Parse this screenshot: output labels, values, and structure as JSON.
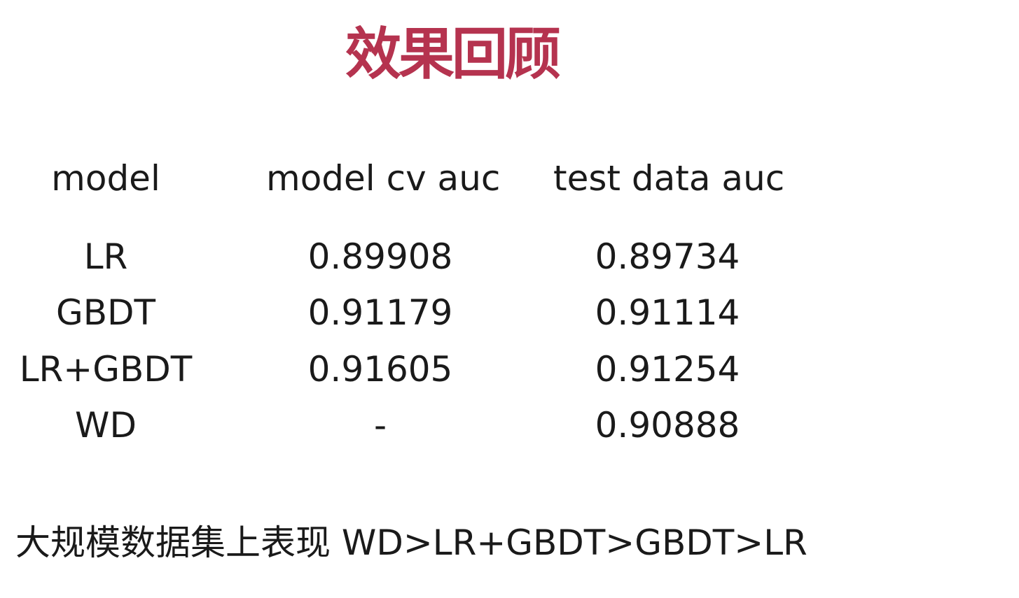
{
  "slide": {
    "title": "效果回顾",
    "accent_color": "#b5334f",
    "text_color": "#1a1a1a",
    "background": "#ffffff"
  },
  "table": {
    "headers": {
      "model": "model",
      "cv_auc": "model cv auc",
      "test_auc": "test data auc"
    },
    "rows": [
      {
        "model": "LR",
        "cv_auc": "0.89908",
        "test_auc": "0.89734"
      },
      {
        "model": "GBDT",
        "cv_auc": "0.91179",
        "test_auc": "0.91114"
      },
      {
        "model": "LR+GBDT",
        "cv_auc": "0.91605",
        "test_auc": "0.91254"
      },
      {
        "model": "WD",
        "cv_auc": "-",
        "test_auc": "0.90888"
      }
    ]
  },
  "summary": "大规模数据集上表现 WD>LR+GBDT>GBDT>LR"
}
